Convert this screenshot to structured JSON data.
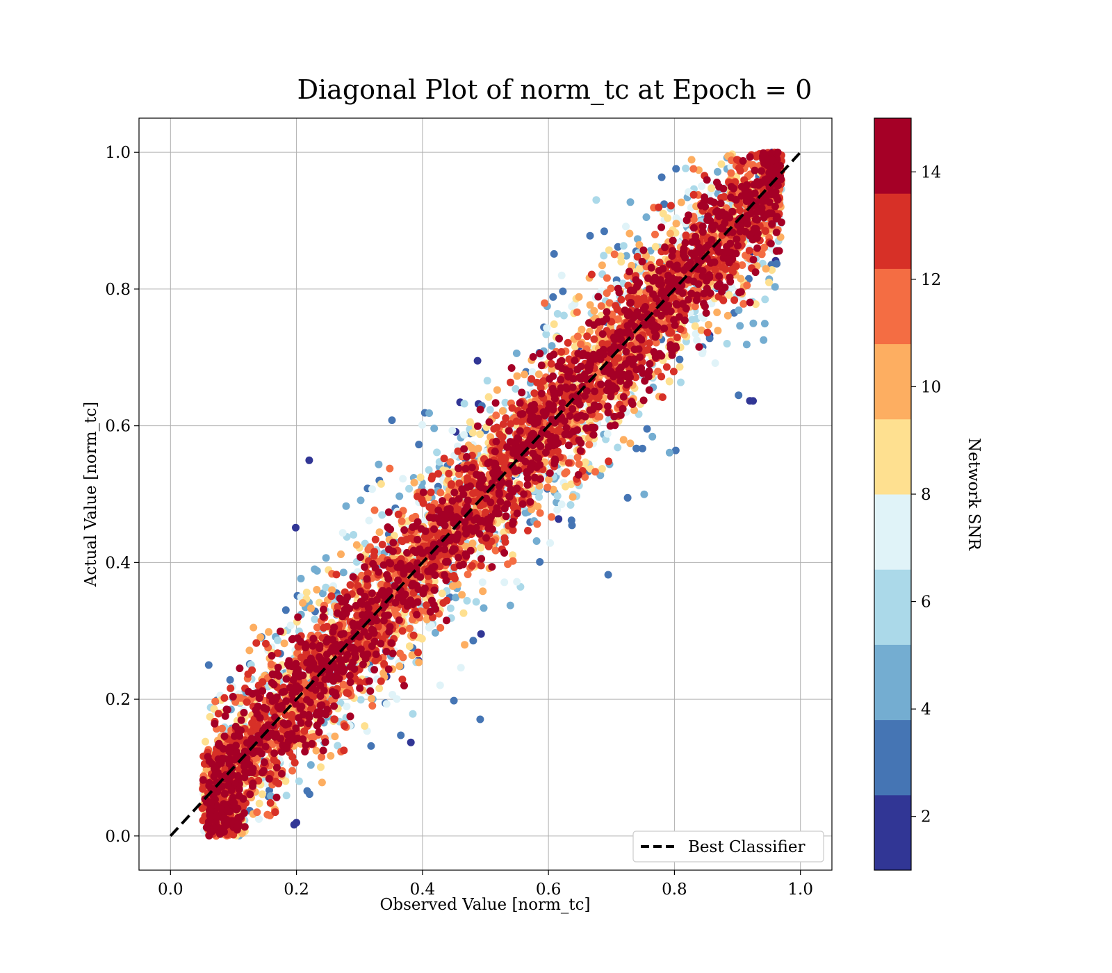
{
  "chart_data": {
    "type": "scatter",
    "title": "Diagonal Plot of norm_tc at Epoch = 0",
    "xlabel": "Observed Value [norm_tc]",
    "ylabel": "Actual Value [norm_tc]",
    "xlim": [
      -0.05,
      1.05
    ],
    "ylim": [
      -0.05,
      1.05
    ],
    "xticks": [
      "0.0",
      "0.2",
      "0.4",
      "0.6",
      "0.8",
      "1.0"
    ],
    "yticks": [
      "0.0",
      "0.2",
      "0.4",
      "0.6",
      "0.8",
      "1.0"
    ],
    "grid": true,
    "reference_line": {
      "name": "Best Classifier",
      "x": [
        0,
        1
      ],
      "y": [
        0,
        1
      ],
      "style": "dashed",
      "color": "#000000"
    },
    "legend_position": "lower-right",
    "colorbar": {
      "label": "Network SNR",
      "range": [
        1,
        15
      ],
      "ticks": [
        "2",
        "4",
        "6",
        "8",
        "10",
        "12",
        "14"
      ],
      "colormap": "RdYlBu_r",
      "bin_colors": [
        "#313695",
        "#4575b4",
        "#74add1",
        "#abd9e9",
        "#e0f3f8",
        "#fee090",
        "#fdae61",
        "#f46d43",
        "#d73027",
        "#a50026"
      ]
    },
    "points": [
      {
        "x": 0.05,
        "y": 0.0
      },
      {
        "x": 0.1,
        "y": 0.05
      },
      {
        "x": 0.15,
        "y": 0.1
      },
      {
        "x": 0.2,
        "y": 0.15
      },
      {
        "x": 0.3,
        "y": 0.3
      },
      {
        "x": 0.4,
        "y": 0.4
      },
      {
        "x": 0.5,
        "y": 0.5
      },
      {
        "x": 0.6,
        "y": 0.6
      },
      {
        "x": 0.7,
        "y": 0.7
      },
      {
        "x": 0.8,
        "y": 0.8
      },
      {
        "x": 0.9,
        "y": 0.9
      },
      {
        "x": 0.95,
        "y": 1.0
      }
    ]
  }
}
